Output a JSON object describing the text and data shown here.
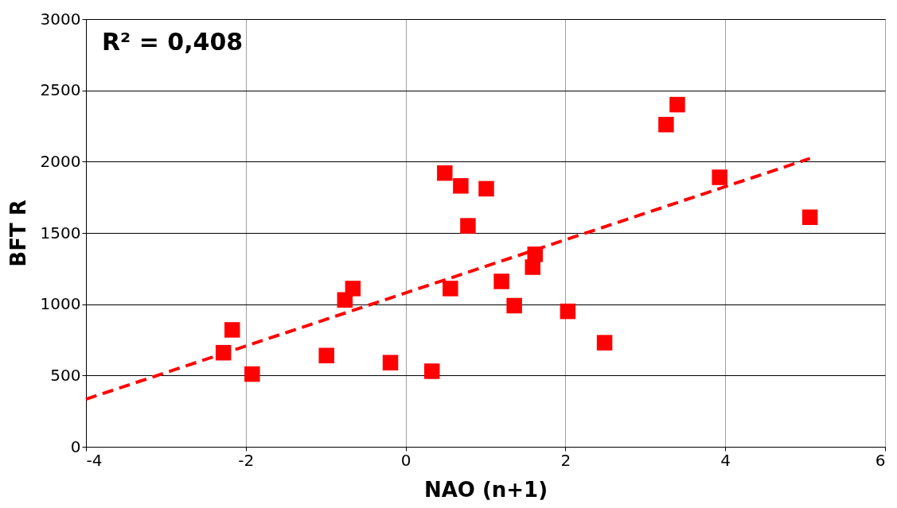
{
  "chart_data": {
    "type": "scatter",
    "xlabel": "NAO (n+1)",
    "ylabel": "BFT R",
    "annotations": [
      "R² = 0,408"
    ],
    "xlim": [
      -4,
      6
    ],
    "xticks": [
      -4,
      -2,
      0,
      2,
      4,
      6
    ],
    "ylim": [
      0,
      3000
    ],
    "yticks": [
      0,
      500,
      1000,
      1500,
      2000,
      2500,
      3000
    ],
    "grid": true,
    "marker": "square",
    "series": [
      {
        "color": "#ff0000",
        "x": [
          -2.28,
          -2.17,
          -1.92,
          -0.99,
          -0.66,
          -0.76,
          -0.19,
          0.33,
          0.49,
          0.56,
          0.69,
          0.78,
          1.01,
          1.2,
          1.36,
          1.59,
          1.62,
          2.03,
          2.49,
          3.26,
          3.4,
          3.93,
          5.06
        ],
        "values": [
          660,
          820,
          510,
          640,
          1110,
          1030,
          590,
          530,
          1920,
          1110,
          1830,
          1550,
          1810,
          1160,
          990,
          1260,
          1350,
          950,
          730,
          2260,
          2400,
          1890,
          1610
        ]
      },
      {
        "type": "line",
        "color": "#ff0000",
        "line_style": "dashed",
        "marker": "none",
        "x": [
          -4,
          5.06
        ],
        "values": [
          334,
          2022
        ]
      }
    ]
  }
}
